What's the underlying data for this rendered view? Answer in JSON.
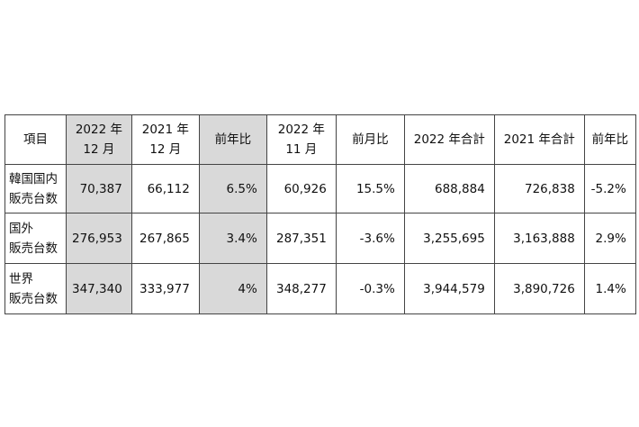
{
  "table": {
    "header": [
      [
        "項目"
      ],
      [
        "2022 年",
        "12 月"
      ],
      [
        "2021 年",
        "12 月"
      ],
      [
        "前年比"
      ],
      [
        "2022 年",
        "11 月"
      ],
      [
        "前月比"
      ],
      [
        "2022 年合計"
      ],
      [
        "2021 年合計"
      ],
      [
        "前年比"
      ]
    ],
    "rows": [
      [
        [
          "韓国国内",
          "販売台数"
        ],
        "70,387",
        "66,112",
        "6.5%",
        "60,926",
        "15.5%",
        "688,884",
        "726,838",
        "-5.2%"
      ],
      [
        [
          "国外",
          "販売台数"
        ],
        "276,953",
        "267,865",
        "3.4%",
        "287,351",
        "-3.6%",
        "3,255,695",
        "3,163,888",
        "2.9%"
      ],
      [
        [
          "世界",
          "販売台数"
        ],
        "347,340",
        "333,977",
        "4%",
        "348,277",
        "-0.3%",
        "3,944,579",
        "3,890,726",
        "1.4%"
      ]
    ]
  }
}
